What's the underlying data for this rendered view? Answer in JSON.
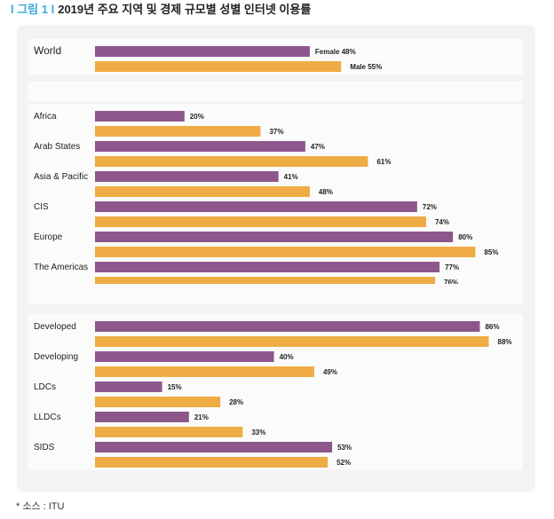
{
  "figure": {
    "label": "l 그림 1 l",
    "title": "2019년 주요 지역 및 경제 규모별 성별 인터넷 이용률",
    "source": "* 소스 : ITU"
  },
  "colors": {
    "female": "#8e578c",
    "male": "#efac44",
    "panel": "#f3f3f3",
    "band": "#fbfbfb"
  },
  "chart_data": {
    "type": "bar",
    "orientation": "horizontal",
    "title": "2019년 주요 지역 및 경제 규모별 성별 인터넷 이용률",
    "xlim": [
      0,
      100
    ],
    "value_suffix": "%",
    "series": [
      {
        "name": "Female",
        "color": "#8e578c"
      },
      {
        "name": "Male",
        "color": "#efac44"
      }
    ],
    "groups": [
      {
        "categories": [
          {
            "name": "World",
            "female": 48,
            "male": 55,
            "series_labels": true
          }
        ]
      },
      {
        "categories": [
          {
            "name": "Africa",
            "female": 20,
            "male": 37
          },
          {
            "name": "Arab States",
            "female": 47,
            "male": 61
          },
          {
            "name": "Asia & Pacific",
            "female": 41,
            "male": 48
          },
          {
            "name": "CIS",
            "female": 72,
            "male": 74
          },
          {
            "name": "Europe",
            "female": 80,
            "male": 85
          },
          {
            "name": "The Americas",
            "female": 77,
            "male": 76
          }
        ]
      },
      {
        "categories": [
          {
            "name": "Developed",
            "female": 86,
            "male": 88
          },
          {
            "name": "Developing",
            "female": 40,
            "male": 49
          },
          {
            "name": "LDCs",
            "female": 15,
            "male": 28
          },
          {
            "name": "LLDCs",
            "female": 21,
            "male": 33
          },
          {
            "name": "SIDS",
            "female": 53,
            "male": 52
          }
        ]
      }
    ]
  }
}
